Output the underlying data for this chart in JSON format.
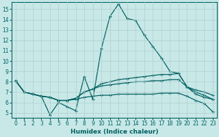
{
  "xlabel": "Humidex (Indice chaleur)",
  "bg_color": "#c8e8e8",
  "line_color": "#006060",
  "grid_color": "#b0cccc",
  "xlim": [
    -0.5,
    23.5
  ],
  "ylim": [
    4.5,
    15.7
  ],
  "xticks": [
    0,
    1,
    2,
    3,
    4,
    5,
    6,
    7,
    8,
    9,
    10,
    11,
    12,
    13,
    14,
    15,
    16,
    17,
    18,
    19,
    20,
    21,
    22,
    23
  ],
  "yticks": [
    5,
    6,
    7,
    8,
    9,
    10,
    11,
    12,
    13,
    14,
    15
  ],
  "line1": [
    8.1,
    7.0,
    6.8,
    6.6,
    4.8,
    6.0,
    5.6,
    5.2,
    8.5,
    6.3,
    11.2,
    14.3,
    15.5,
    14.1,
    13.9,
    12.5,
    11.4,
    10.3,
    9.0,
    8.8,
    7.5,
    6.8,
    6.5,
    6.3
  ],
  "line2": [
    8.1,
    7.0,
    6.8,
    6.6,
    6.5,
    6.2,
    6.2,
    6.4,
    7.0,
    7.3,
    7.8,
    8.0,
    8.2,
    8.3,
    8.4,
    8.5,
    8.6,
    8.7,
    8.7,
    8.8,
    7.5,
    7.2,
    7.0,
    6.7
  ],
  "line3": [
    8.1,
    7.0,
    6.8,
    6.6,
    6.5,
    6.2,
    6.2,
    6.4,
    7.0,
    7.3,
    7.6,
    7.7,
    7.8,
    7.9,
    8.0,
    8.0,
    8.1,
    8.1,
    8.2,
    8.2,
    7.5,
    7.0,
    6.7,
    6.3
  ],
  "line4": [
    8.1,
    7.0,
    6.8,
    6.6,
    6.5,
    6.2,
    6.2,
    6.3,
    6.5,
    6.6,
    6.7,
    6.7,
    6.8,
    6.8,
    6.8,
    6.8,
    6.8,
    6.9,
    6.9,
    6.9,
    6.6,
    6.2,
    5.9,
    5.1
  ]
}
